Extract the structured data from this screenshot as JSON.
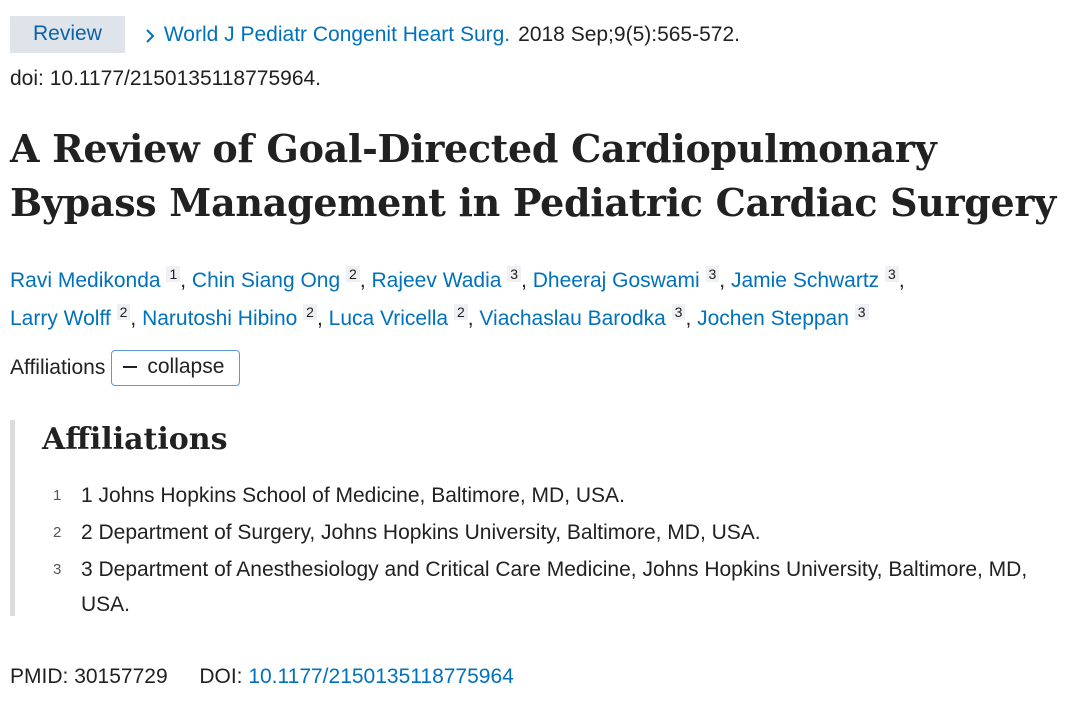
{
  "header": {
    "badge": "Review",
    "journal": "World J Pediatr Congenit Heart Surg.",
    "pubdate": "2018 Sep;9(5):565-572.",
    "doi": "doi: 10.1177/2150135118775964."
  },
  "title": "A Review of Goal-Directed Cardiopulmonary Bypass Management in Pediatric Cardiac Surgery",
  "authors": [
    {
      "name": "Ravi Medikonda",
      "aff": "1"
    },
    {
      "name": "Chin Siang Ong",
      "aff": "2"
    },
    {
      "name": "Rajeev Wadia",
      "aff": "3"
    },
    {
      "name": "Dheeraj Goswami",
      "aff": "3"
    },
    {
      "name": "Jamie Schwartz",
      "aff": "3"
    },
    {
      "name": "Larry Wolff",
      "aff": "2"
    },
    {
      "name": "Narutoshi Hibino",
      "aff": "2"
    },
    {
      "name": "Luca Vricella",
      "aff": "2"
    },
    {
      "name": "Viachaslau Barodka",
      "aff": "3"
    },
    {
      "name": "Jochen Steppan",
      "aff": "3"
    }
  ],
  "affiliations_toggle": {
    "label": "Affiliations",
    "button": "collapse"
  },
  "affiliations": {
    "heading": "Affiliations",
    "items": [
      {
        "num": "1",
        "text": "1 Johns Hopkins School of Medicine, Baltimore, MD, USA."
      },
      {
        "num": "2",
        "text": "2 Department of Surgery, Johns Hopkins University, Baltimore, MD, USA."
      },
      {
        "num": "3",
        "text": "3 Department of Anesthesiology and Critical Care Medicine, Johns Hopkins University, Baltimore, MD, USA."
      }
    ]
  },
  "ids": {
    "pmid_label": "PMID:",
    "pmid": "30157729",
    "doi_label": "DOI:",
    "doi": "10.1177/2150135118775964"
  },
  "colors": {
    "link": "#0071bc",
    "badge_bg": "#dfe3ea",
    "text": "#212121"
  }
}
